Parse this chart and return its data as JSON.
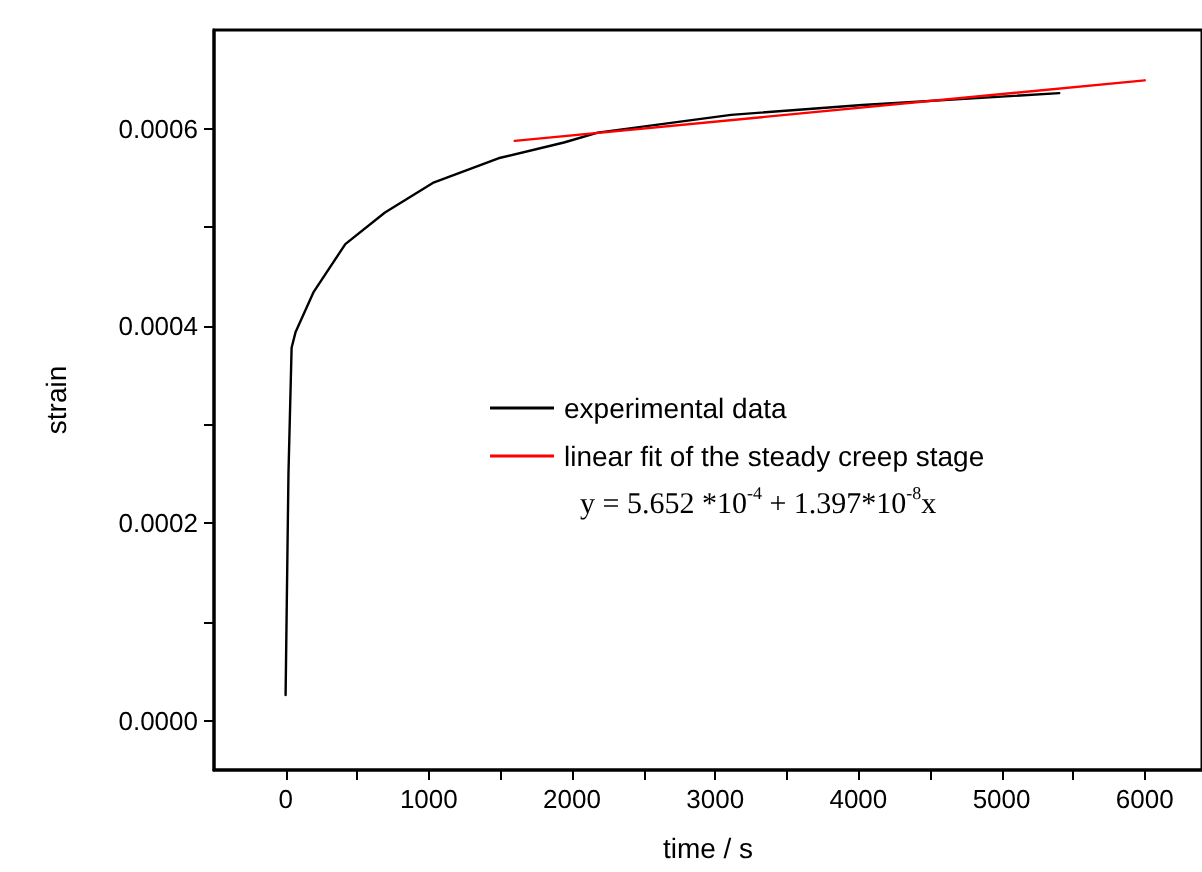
{
  "chart_data": {
    "type": "line",
    "xlabel": "time / s",
    "ylabel": "strain",
    "xlim": [
      -500,
      6400
    ],
    "ylim": [
      -5e-05,
      0.0007
    ],
    "xticks": [
      0,
      {
        "value": 500,
        "label": null
      },
      1000,
      {
        "value": 1500,
        "label": null
      },
      2000,
      {
        "value": 2500,
        "label": null
      },
      3000,
      {
        "value": 3500,
        "label": null
      },
      4000,
      {
        "value": 4500,
        "label": null
      },
      5000,
      {
        "value": 5500,
        "label": null
      },
      6000
    ],
    "yticks": [
      {
        "value": 0,
        "label": "0.0000"
      },
      {
        "value": 0.0001,
        "label": null
      },
      0.0002,
      {
        "value": 0.0003,
        "label": null
      },
      0.0004,
      {
        "value": 0.0005,
        "label": null
      },
      0.0006
    ],
    "series": [
      {
        "name": "experimental data",
        "color": "#000000",
        "x": [
          0,
          20,
          42,
          70,
          194,
          417,
          694,
          1028,
          1486,
          1944,
          2180,
          3111,
          4028,
          5403
        ],
        "values": [
          2.6e-05,
          0.00025,
          0.000378,
          0.000394,
          0.000434,
          0.000483,
          0.000515,
          0.000545,
          0.00057,
          0.000586,
          0.000596,
          0.000614,
          0.000624,
          0.000636
        ]
      },
      {
        "name": "linear fit of the steady creep stage",
        "color": "#ff0000",
        "x": [
          1600,
          6000
        ],
        "values": [
          0.0005876,
          0.000649
        ]
      }
    ],
    "annotations": [
      "y = 5.652 *10$^{-4}$ + 1.397*10$^{-8}$x"
    ],
    "legend": "right",
    "grid": false,
    "marker": "none",
    "line_style": "solid"
  }
}
